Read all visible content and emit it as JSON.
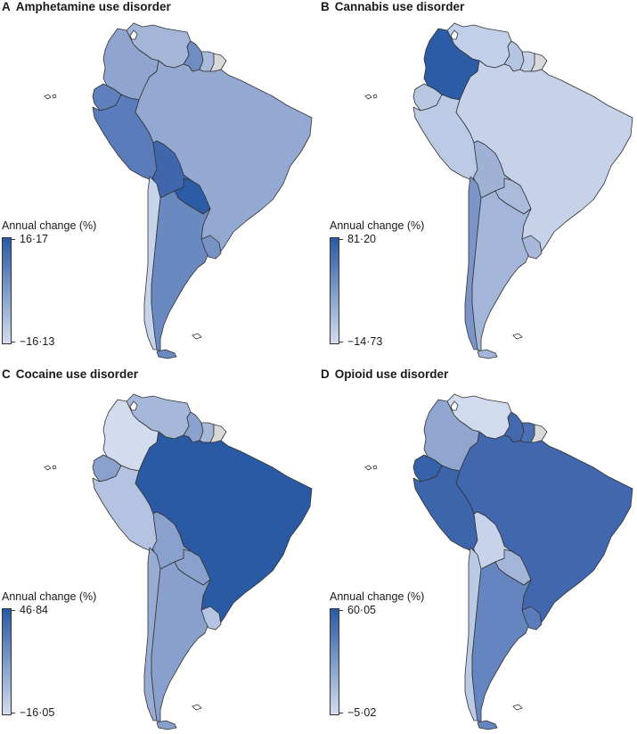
{
  "colors": {
    "scale_low": "#d2dcee",
    "scale_high": "#2a5aa3",
    "no_data": "#d9d9d9",
    "border": "#333333"
  },
  "legend_title": "Annual change (%)",
  "panels": [
    {
      "letter": "A",
      "title": "Amphetamine use disorder",
      "legend_max": "16·17",
      "legend_min": "−16·13",
      "fills": {
        "colombia": "#8fa5cf",
        "venezuela": "#a4b6d8",
        "guyana": "#6f8dc3",
        "suriname": "#a9bada",
        "guiana": "#d9d9d9",
        "ecuador": "#5f80bd",
        "peru": "#5a7cbb",
        "brazil": "#94a9d1",
        "bolivia": "#4066ad",
        "paraguay": "#2d5ca6",
        "chile": "#c6d3ea",
        "argentina": "#6b89c1",
        "uruguay": "#7793c6"
      }
    },
    {
      "letter": "B",
      "title": "Cannabis use disorder",
      "legend_max": "81·20",
      "legend_min": "−14·73",
      "fills": {
        "colombia": "#2d5ca6",
        "venezuela": "#c1cfe8",
        "guyana": "#b4c4e1",
        "suriname": "#c3d0e8",
        "guiana": "#d9d9d9",
        "ecuador": "#b8c8e3",
        "peru": "#bccbe5",
        "brazil": "#c5d2ea",
        "bolivia": "#9fb2d6",
        "paraguay": "#a9bada",
        "chile": "#7b95c8",
        "argentina": "#a3b5d8",
        "uruguay": "#a7b8da"
      }
    },
    {
      "letter": "C",
      "title": "Cocaine use disorder",
      "legend_max": "46·84",
      "legend_min": "−16·05",
      "fills": {
        "colombia": "#d2dcee",
        "venezuela": "#a6b8da",
        "guyana": "#8aa1ce",
        "suriname": "#a6b8da",
        "guiana": "#d9d9d9",
        "ecuador": "#8aa1ce",
        "peru": "#b3c3e1",
        "brazil": "#2a5aa3",
        "bolivia": "#8aa1ce",
        "paraguay": "#8aa1ce",
        "chile": "#98acd3",
        "argentina": "#89a0cd",
        "uruguay": "#b3c3e1"
      }
    },
    {
      "letter": "D",
      "title": "Opioid use disorder",
      "legend_max": "60·05",
      "legend_min": "−5·02",
      "fills": {
        "colombia": "#90a6d0",
        "venezuela": "#d0dbee",
        "guyana": "#4468ae",
        "suriname": "#4c70b3",
        "guiana": "#d9d9d9",
        "ecuador": "#3662aa",
        "peru": "#3c65ac",
        "brazil": "#4168ae",
        "bolivia": "#c6d3ea",
        "paraguay": "#a3b5d8",
        "chile": "#bac9e4",
        "argentina": "#6585c0",
        "uruguay": "#5a7cbb"
      }
    }
  ]
}
